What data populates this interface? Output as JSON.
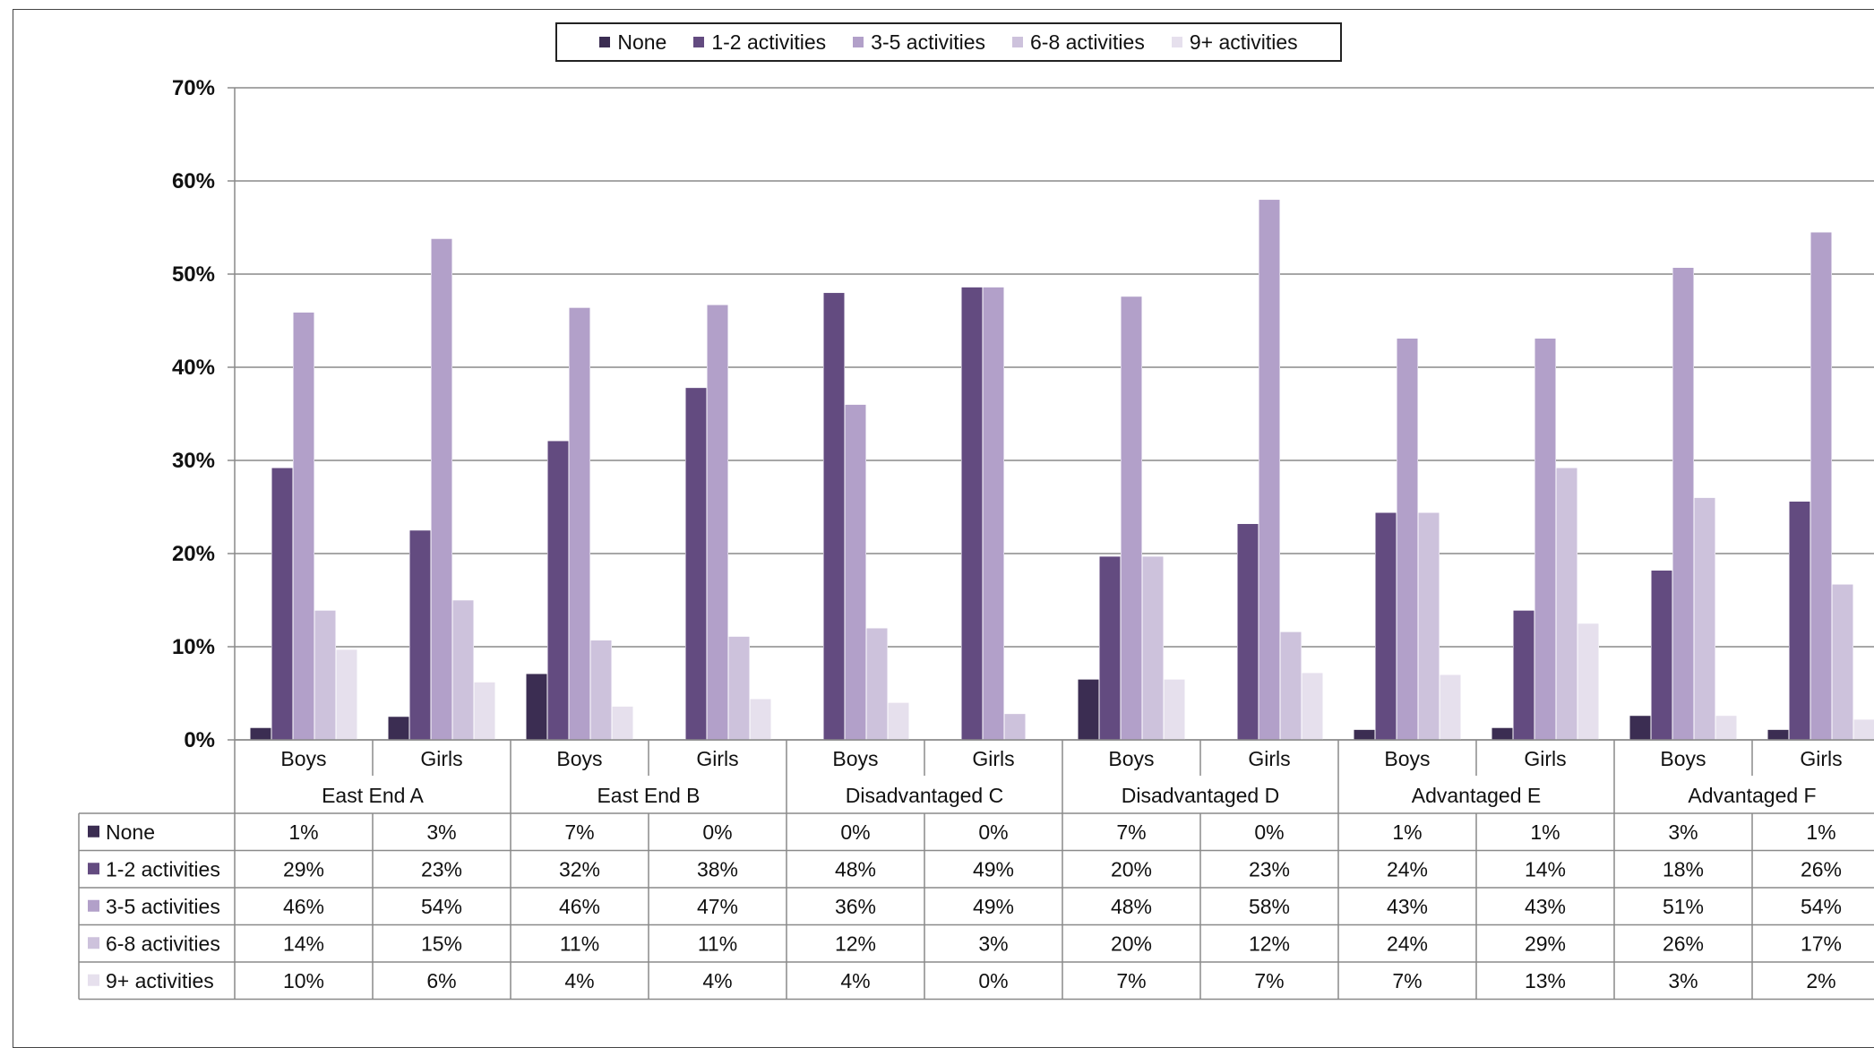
{
  "chart_data": {
    "type": "bar",
    "title": "",
    "xlabel": "",
    "ylabel": "",
    "ylim": [
      0,
      70
    ],
    "yticks": [
      "0%",
      "10%",
      "20%",
      "30%",
      "40%",
      "50%",
      "60%",
      "70%"
    ],
    "legend_position": "top",
    "grid": true,
    "groups": [
      {
        "name": "East End A",
        "categories": [
          "Boys",
          "Girls"
        ]
      },
      {
        "name": "East End B",
        "categories": [
          "Boys",
          "Girls"
        ]
      },
      {
        "name": "Disadvantaged C",
        "categories": [
          "Boys",
          "Girls"
        ]
      },
      {
        "name": "Disadvantaged D",
        "categories": [
          "Boys",
          "Girls"
        ]
      },
      {
        "name": "Advantaged E",
        "categories": [
          "Boys",
          "Girls"
        ]
      },
      {
        "name": "Advantaged F",
        "categories": [
          "Boys",
          "Girls"
        ]
      }
    ],
    "series": [
      {
        "name": "None",
        "color": "#3b2d52",
        "values": [
          1.3,
          2.5,
          7.1,
          0,
          0,
          0,
          6.5,
          0,
          1.1,
          1.3,
          2.6,
          1.1
        ],
        "labels": [
          "1%",
          "3%",
          "7%",
          "0%",
          "0%",
          "0%",
          "7%",
          "0%",
          "1%",
          "1%",
          "3%",
          "1%"
        ]
      },
      {
        "name": "1-2 activities",
        "color": "#634b80",
        "values": [
          29.2,
          22.5,
          32.1,
          37.8,
          48.0,
          48.6,
          19.7,
          23.2,
          24.4,
          13.9,
          18.2,
          25.6
        ],
        "labels": [
          "29%",
          "23%",
          "32%",
          "38%",
          "48%",
          "49%",
          "20%",
          "23%",
          "24%",
          "14%",
          "18%",
          "26%"
        ]
      },
      {
        "name": "3-5 activities",
        "color": "#b2a0c9",
        "values": [
          45.9,
          53.8,
          46.4,
          46.7,
          36.0,
          48.6,
          47.6,
          58.0,
          43.1,
          43.1,
          50.7,
          54.5
        ],
        "labels": [
          "46%",
          "54%",
          "46%",
          "47%",
          "36%",
          "49%",
          "48%",
          "58%",
          "43%",
          "43%",
          "51%",
          "54%"
        ]
      },
      {
        "name": "6-8 activities",
        "color": "#cdc2dc",
        "values": [
          13.9,
          15.0,
          10.7,
          11.1,
          12.0,
          2.8,
          19.7,
          11.6,
          24.4,
          29.2,
          26.0,
          16.7
        ],
        "labels": [
          "14%",
          "15%",
          "11%",
          "11%",
          "12%",
          "3%",
          "20%",
          "12%",
          "24%",
          "29%",
          "26%",
          "17%"
        ]
      },
      {
        "name": "9+ activities",
        "color": "#e6e0ed",
        "values": [
          9.7,
          6.2,
          3.6,
          4.4,
          4.0,
          0,
          6.5,
          7.2,
          7.0,
          12.5,
          2.6,
          2.2
        ],
        "labels": [
          "10%",
          "6%",
          "4%",
          "4%",
          "4%",
          "0%",
          "7%",
          "7%",
          "7%",
          "13%",
          "3%",
          "2%"
        ]
      }
    ]
  }
}
